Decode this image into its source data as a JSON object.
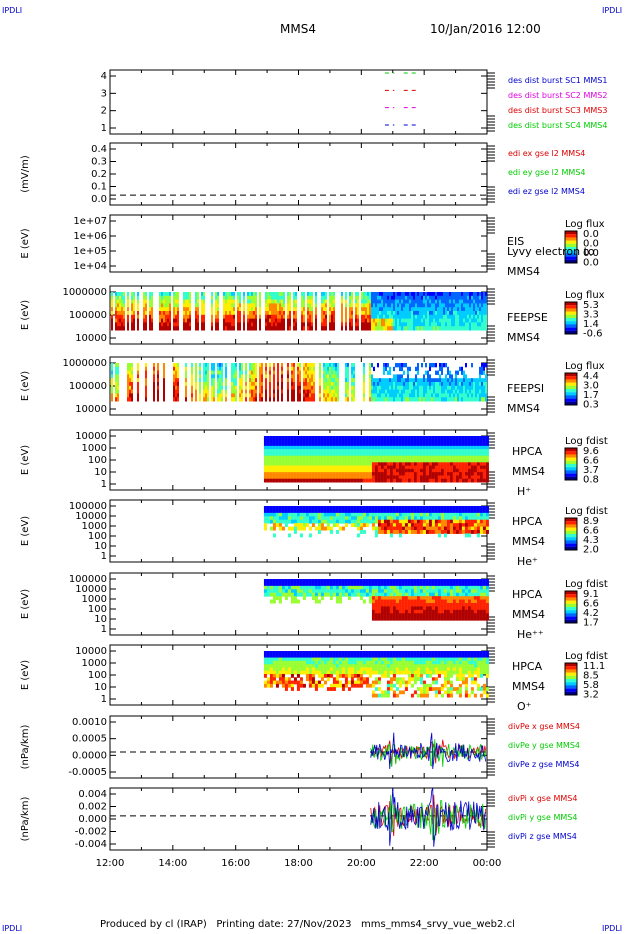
{
  "header": {
    "title": "MMS4",
    "date": "10/Jan/2016 12:00",
    "corner_label": "IPDLI"
  },
  "footer": {
    "produced_by": "Produced by cl (IRAP)   Printing date: 27/Nov/2023   mms_mms4_srvy_vue_web2.cl"
  },
  "time_axis": {
    "labels": [
      "12:00",
      "14:00",
      "16:00",
      "18:00",
      "20:00",
      "22:00",
      "00:00"
    ]
  },
  "colors": {
    "red": "#dd0000",
    "green": "#00cc00",
    "blue": "#0000cc",
    "magenta": "#dd00dd"
  },
  "panels": [
    {
      "id": "dist",
      "ylabel": "",
      "ticks": [
        "4",
        "3",
        "2",
        "1"
      ],
      "legend": [
        {
          "text": "des dist burst SC1 MMS1",
          "color": "blue"
        },
        {
          "text": "des dist burst SC2 MMS2",
          "color": "magenta"
        },
        {
          "text": "des dist burst SC3 MMS3",
          "color": "red"
        },
        {
          "text": "des dist burst SC4 MMS4",
          "color": "green"
        }
      ]
    },
    {
      "id": "edi",
      "ylabel": "(mV/m)",
      "ticks": [
        "0.4",
        "0.3",
        "0.2",
        "0.1",
        "0.0"
      ],
      "legend": [
        {
          "text": "edi ex gse l2 MMS4",
          "color": "red"
        },
        {
          "text": "edi ey gse l2 MMS4",
          "color": "green"
        },
        {
          "text": "edi ez gse l2 MMS4",
          "color": "blue"
        }
      ]
    },
    {
      "id": "eis",
      "ylabel": "E (eV)",
      "ticks": [
        "1e+07",
        "1e+06",
        "1e+05",
        "1e+04"
      ],
      "labels": [
        "EIS",
        "Lyvy electron to",
        "MMS4"
      ],
      "cbar": {
        "title": "Log flux",
        "values": [
          "0.0",
          "0.0",
          "0.0",
          "0.0"
        ]
      }
    },
    {
      "id": "feepse",
      "ylabel": "E (eV)",
      "ticks": [
        "1000000",
        "100000",
        "10000"
      ],
      "labels": [
        "FEEPSE",
        "MMS4"
      ],
      "cbar": {
        "title": "Log flux",
        "values": [
          "5.3",
          "3.3",
          "1.4",
          "-0.6"
        ]
      }
    },
    {
      "id": "feepsi",
      "ylabel": "E (eV)",
      "ticks": [
        "1000000",
        "100000",
        "10000"
      ],
      "labels": [
        "FEEPSI",
        "MMS4"
      ],
      "cbar": {
        "title": "Log flux",
        "values": [
          "4.4",
          "3.0",
          "1.7",
          "0.3"
        ]
      }
    },
    {
      "id": "hpca_h",
      "ylabel": "E (eV)",
      "ticks": [
        "10000",
        "1000",
        "100",
        "10",
        "1"
      ],
      "labels": [
        "HPCA",
        "MMS4",
        "H⁺"
      ],
      "cbar": {
        "title": "Log fdist",
        "values": [
          "9.6",
          "6.6",
          "3.7",
          "0.8"
        ]
      }
    },
    {
      "id": "hpca_he",
      "ylabel": "E (eV)",
      "ticks": [
        "100000",
        "10000",
        "1000",
        "100",
        "10",
        "1"
      ],
      "labels": [
        "HPCA",
        "MMS4",
        "He⁺"
      ],
      "cbar": {
        "title": "Log fdist",
        "values": [
          "8.9",
          "6.6",
          "4.3",
          "2.0"
        ]
      }
    },
    {
      "id": "hpca_he2",
      "ylabel": "E (eV)",
      "ticks": [
        "100000",
        "10000",
        "1000",
        "100",
        "10",
        "1"
      ],
      "labels": [
        "HPCA",
        "MMS4",
        "He⁺⁺"
      ],
      "cbar": {
        "title": "Log fdist",
        "values": [
          "9.1",
          "6.6",
          "4.2",
          "1.7"
        ]
      }
    },
    {
      "id": "hpca_o",
      "ylabel": "E (eV)",
      "ticks": [
        "10000",
        "1000",
        "100",
        "10",
        "1"
      ],
      "labels": [
        "HPCA",
        "MMS4",
        "O⁺"
      ],
      "cbar": {
        "title": "Log fdist",
        "values": [
          "11.1",
          "8.5",
          "5.8",
          "3.2"
        ]
      }
    },
    {
      "id": "divpe",
      "ylabel": "(nPa/km)",
      "ticks": [
        "0.0010",
        "0.0005",
        "0.0000",
        "-0.0005"
      ],
      "legend": [
        {
          "text": "divPe x gse MMS4",
          "color": "red"
        },
        {
          "text": "divPe y gse MMS4",
          "color": "green"
        },
        {
          "text": "divPe z gse MMS4",
          "color": "blue"
        }
      ]
    },
    {
      "id": "divpi",
      "ylabel": "(nPa/km)",
      "ticks": [
        "0.004",
        "0.002",
        "0.000",
        "-0.002",
        "-0.004"
      ],
      "legend": [
        {
          "text": "divPi x gse MMS4",
          "color": "red"
        },
        {
          "text": "divPi y gse MMS4",
          "color": "green"
        },
        {
          "text": "divPi z gse MMS4",
          "color": "blue"
        }
      ]
    }
  ],
  "chart_data": {
    "type": "line",
    "title": "MMS4",
    "x_range": [
      "12:00",
      "00:00"
    ],
    "notes_series": {
      "burst_intervals_hours": [
        [
          20.75,
          21.05
        ],
        [
          21.35,
          21.75
        ]
      ],
      "spectrogram_ion_onset_hour": 16.9,
      "wave_activity_start_hour": 20.3
    }
  }
}
